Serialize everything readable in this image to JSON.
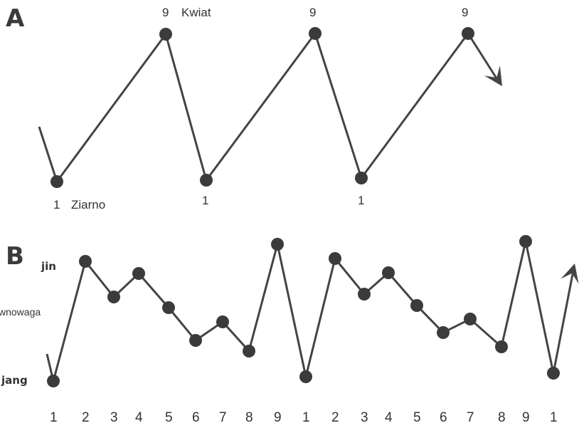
{
  "panel_a": {
    "letter": "A",
    "top_label": "9",
    "top_name": "Kwiat",
    "bottom_label": "1",
    "bottom_name": "Ziarno",
    "sequence": [
      1,
      9,
      1,
      9,
      1,
      9
    ]
  },
  "panel_b": {
    "letter": "B",
    "jin_label": "jin",
    "balance_label": "wnowaga",
    "jang_label": "jang",
    "tick_labels": [
      "1",
      "2",
      "3",
      "4",
      "5",
      "6",
      "7",
      "8",
      "9",
      "1",
      "2",
      "3",
      "4",
      "5",
      "6",
      "7",
      "8",
      "9",
      "1"
    ]
  },
  "colors": {
    "line": "#444444",
    "dot": "#3b3b3b",
    "text": "#333333"
  }
}
